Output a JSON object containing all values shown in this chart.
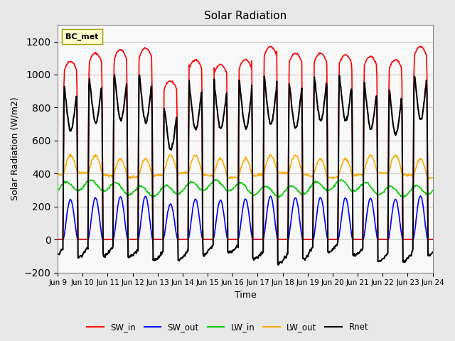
{
  "title": "Solar Radiation",
  "ylabel": "Solar Radiation (W/m2)",
  "xlabel": "Time",
  "ylim": [
    -200,
    1300
  ],
  "yticks": [
    -200,
    0,
    200,
    400,
    600,
    800,
    1000,
    1200
  ],
  "legend_label": "BC_met",
  "series_labels": [
    "SW_in",
    "SW_out",
    "LW_in",
    "LW_out",
    "Rnet"
  ],
  "series_colors": [
    "#ff0000",
    "#0000ff",
    "#00cc00",
    "#ffaa00",
    "#000000"
  ],
  "line_widths": [
    1.2,
    1.2,
    1.2,
    1.2,
    1.5
  ],
  "xtick_labels": [
    "Jun 9",
    "Jun 10",
    "Jun 11",
    "Jun 12",
    "Jun 13",
    "Jun 14",
    "Jun 15",
    "Jun 16",
    "Jun 17",
    "Jun 18",
    "Jun 19",
    "Jun 20",
    "Jun 21",
    "Jun 22",
    "Jun 23",
    "Jun 24"
  ],
  "n_days": 15,
  "background_color": "#e8e8e8",
  "plot_bg_color": "#f8f8f8"
}
